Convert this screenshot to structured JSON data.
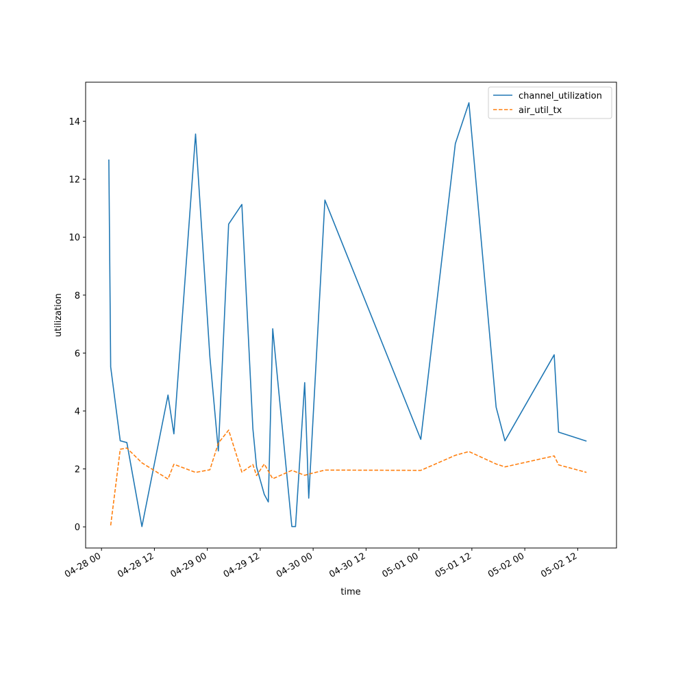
{
  "chart_data": {
    "type": "line",
    "xlabel": "time",
    "ylabel": "utilization",
    "x_tick_labels": [
      "04-28 00",
      "04-28 12",
      "04-29 00",
      "04-29 12",
      "04-30 00",
      "04-30 12",
      "05-01 00",
      "05-01 12",
      "05-02 00",
      "05-02 12"
    ],
    "x_ticks": [
      "2025-04-28 00:00",
      "2025-04-28 12:00",
      "2025-04-29 00:00",
      "2025-04-29 12:00",
      "2025-04-30 00:00",
      "2025-04-30 12:00",
      "2025-05-01 00:00",
      "2025-05-01 12:00",
      "2025-05-02 00:00",
      "2025-05-02 12:00"
    ],
    "xlim": [
      "2025-04-27 20:24",
      "2025-05-02 20:48"
    ],
    "y_ticks": [
      0,
      2,
      4,
      6,
      8,
      10,
      12,
      14
    ],
    "ylim": [
      -0.73,
      15.35
    ],
    "grid": false,
    "legend_position": "top-right",
    "series": [
      {
        "name": "channel_utilization",
        "color": "#1f77b4",
        "style": "solid",
        "points": [
          [
            "2025-04-28 01:40",
            12.68
          ],
          [
            "2025-04-28 02:05",
            5.52
          ],
          [
            "2025-04-28 04:15",
            2.97
          ],
          [
            "2025-04-28 05:45",
            2.91
          ],
          [
            "2025-04-28 09:10",
            0.01
          ],
          [
            "2025-04-28 15:05",
            4.55
          ],
          [
            "2025-04-28 16:25",
            3.21
          ],
          [
            "2025-04-28 21:20",
            13.56
          ],
          [
            "2025-04-29 00:35",
            5.86
          ],
          [
            "2025-04-29 02:30",
            2.62
          ],
          [
            "2025-04-29 04:50",
            10.45
          ],
          [
            "2025-04-29 07:50",
            11.13
          ],
          [
            "2025-04-29 10:20",
            3.39
          ],
          [
            "2025-04-29 11:10",
            2.07
          ],
          [
            "2025-04-29 12:55",
            1.12
          ],
          [
            "2025-04-29 13:50",
            0.86
          ],
          [
            "2025-04-29 14:50",
            6.84
          ],
          [
            "2025-04-29 19:10",
            0.01
          ],
          [
            "2025-04-29 20:00",
            0.01
          ],
          [
            "2025-04-29 22:05",
            4.98
          ],
          [
            "2025-04-29 23:00",
            0.99
          ],
          [
            "2025-04-30 02:40",
            11.28
          ],
          [
            "2025-05-01 00:25",
            3.02
          ],
          [
            "2025-05-01 08:15",
            13.23
          ],
          [
            "2025-05-01 11:20",
            14.64
          ],
          [
            "2025-05-01 17:30",
            4.13
          ],
          [
            "2025-05-01 19:30",
            2.97
          ],
          [
            "2025-05-02 06:40",
            5.94
          ],
          [
            "2025-05-02 07:40",
            3.27
          ],
          [
            "2025-05-02 14:00",
            2.96
          ]
        ]
      },
      {
        "name": "air_util_tx",
        "color": "#ff7f0e",
        "style": "dashed",
        "points": [
          [
            "2025-04-28 02:05",
            0.05
          ],
          [
            "2025-04-28 04:15",
            2.68
          ],
          [
            "2025-04-28 05:45",
            2.72
          ],
          [
            "2025-04-28 09:10",
            2.21
          ],
          [
            "2025-04-28 15:05",
            1.65
          ],
          [
            "2025-04-28 16:25",
            2.16
          ],
          [
            "2025-04-28 21:20",
            1.88
          ],
          [
            "2025-04-29 00:35",
            1.97
          ],
          [
            "2025-04-29 02:30",
            2.89
          ],
          [
            "2025-04-29 04:50",
            3.34
          ],
          [
            "2025-04-29 07:50",
            1.89
          ],
          [
            "2025-04-29 10:20",
            2.15
          ],
          [
            "2025-04-29 11:10",
            1.77
          ],
          [
            "2025-04-29 12:55",
            2.17
          ],
          [
            "2025-04-29 14:50",
            1.66
          ],
          [
            "2025-04-29 19:10",
            1.95
          ],
          [
            "2025-04-29 22:05",
            1.78
          ],
          [
            "2025-04-29 23:00",
            1.82
          ],
          [
            "2025-04-30 02:40",
            1.96
          ],
          [
            "2025-05-01 00:25",
            1.95
          ],
          [
            "2025-05-01 08:15",
            2.47
          ],
          [
            "2025-05-01 11:20",
            2.6
          ],
          [
            "2025-05-01 17:30",
            2.17
          ],
          [
            "2025-05-01 19:30",
            2.07
          ],
          [
            "2025-05-02 06:40",
            2.45
          ],
          [
            "2025-05-02 07:40",
            2.14
          ],
          [
            "2025-05-02 14:00",
            1.88
          ]
        ]
      }
    ]
  }
}
